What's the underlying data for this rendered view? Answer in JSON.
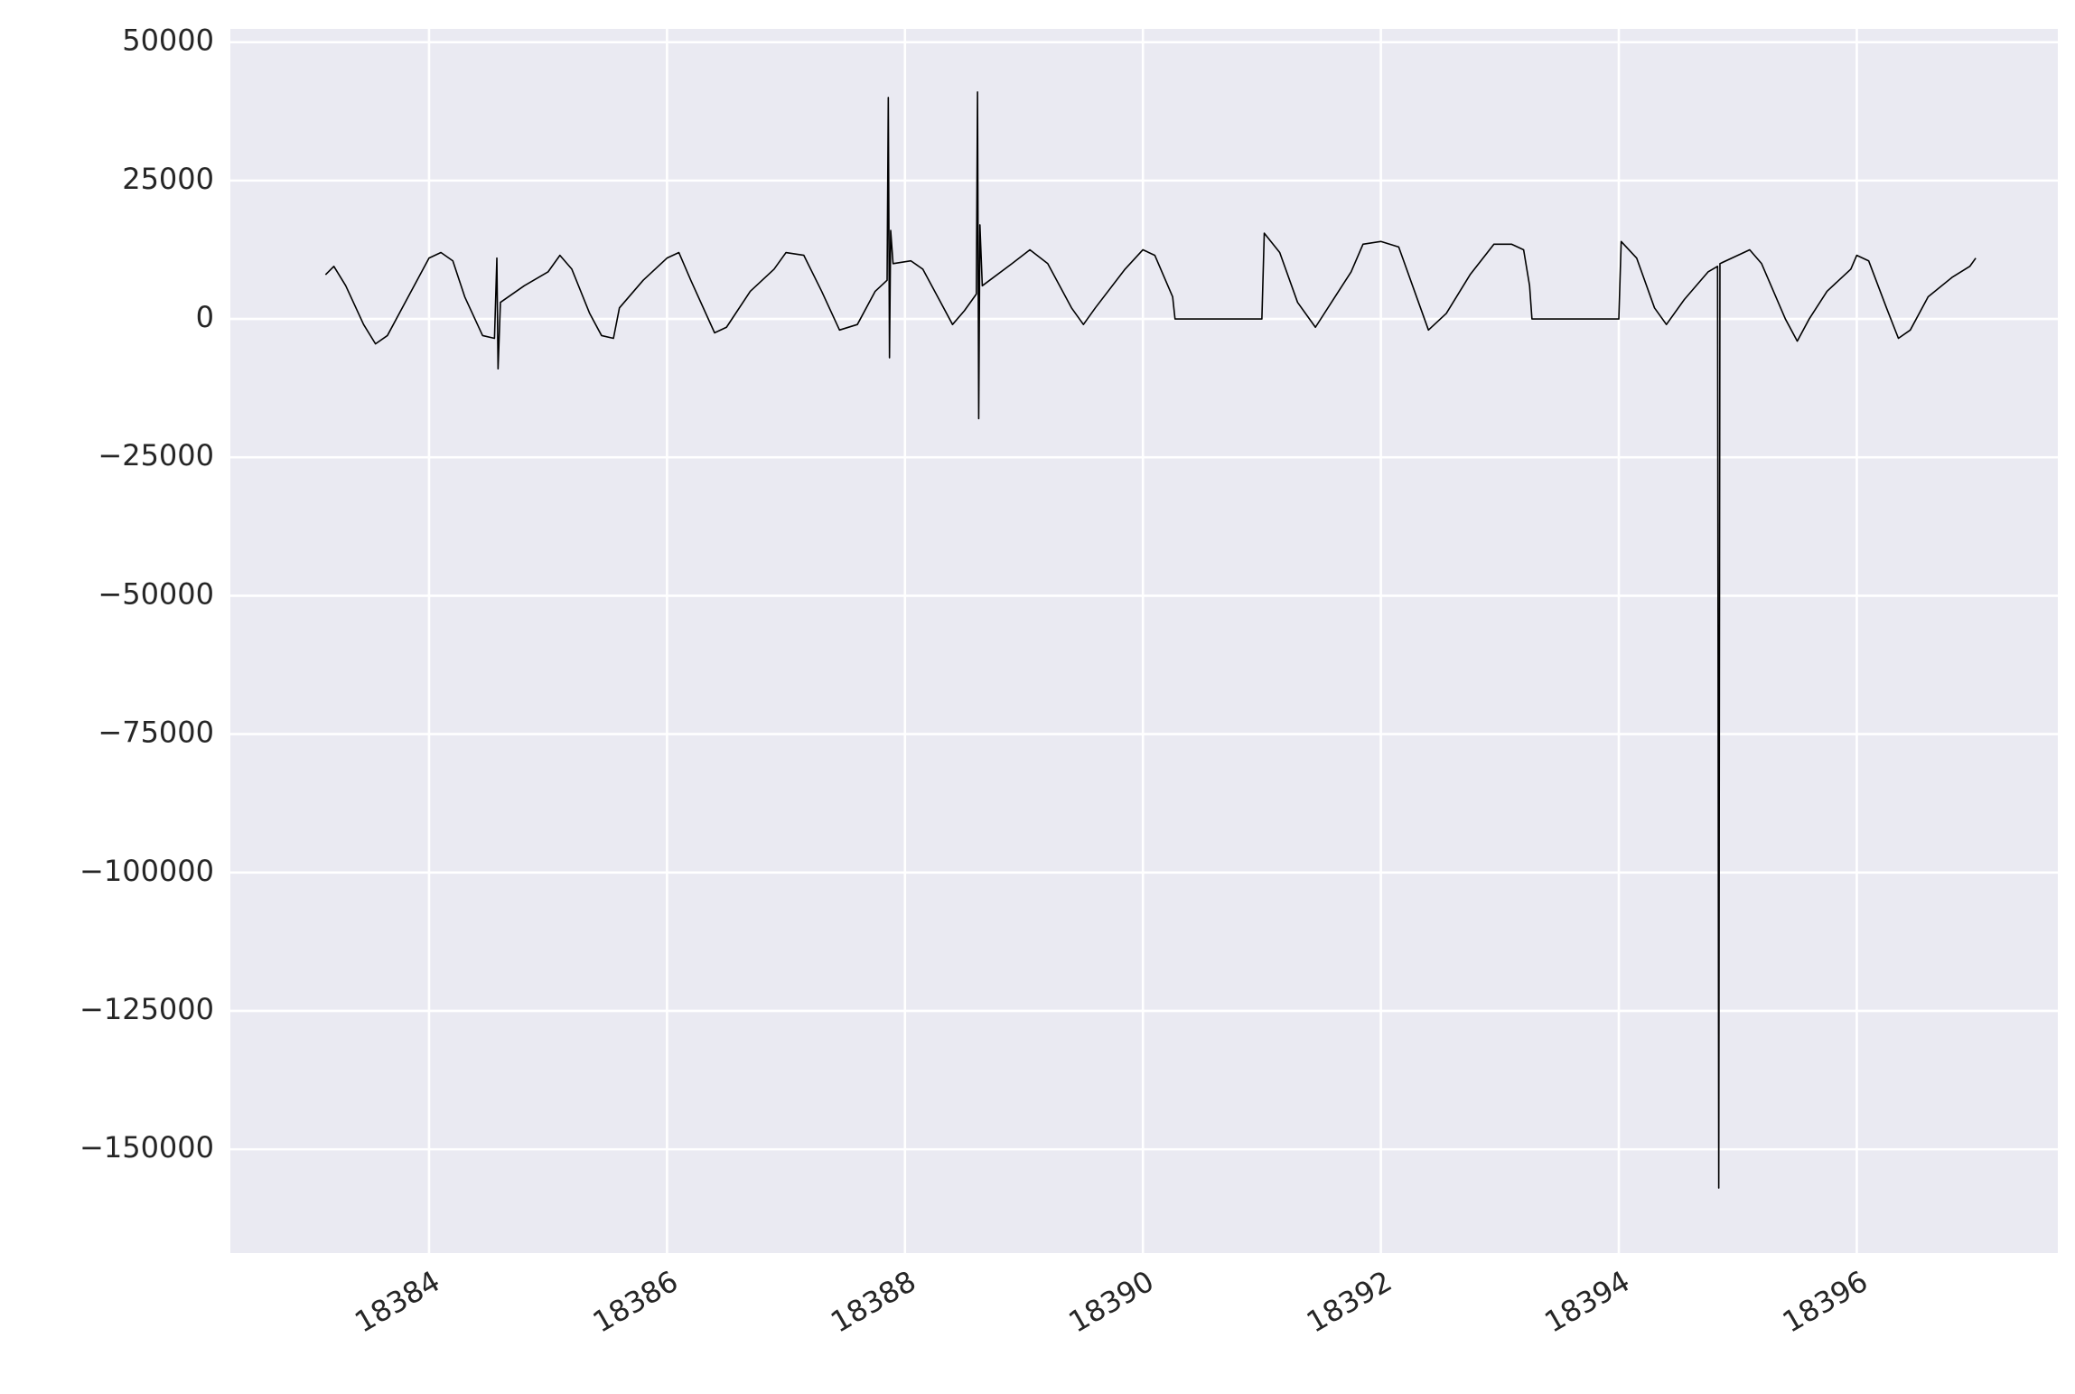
{
  "chart_data": {
    "type": "line",
    "x": [
      18383.13,
      18383.2,
      18383.3,
      18383.45,
      18383.55,
      18383.65,
      18383.8,
      18384.0,
      18384.1,
      18384.2,
      18384.3,
      18384.45,
      18384.55,
      18384.57,
      18384.58,
      18384.6,
      18384.8,
      18385.0,
      18385.1,
      18385.2,
      18385.35,
      18385.45,
      18385.55,
      18385.6,
      18385.8,
      18386.0,
      18386.1,
      18386.2,
      18386.4,
      18386.5,
      18386.7,
      18386.9,
      18387.0,
      18387.15,
      18387.3,
      18387.45,
      18387.6,
      18387.75,
      18387.85,
      18387.86,
      18387.87,
      18387.88,
      18387.9,
      18388.05,
      18388.15,
      18388.3,
      18388.4,
      18388.5,
      18388.6,
      18388.61,
      18388.62,
      18388.63,
      18388.65,
      18388.9,
      18389.05,
      18389.2,
      18389.4,
      18389.5,
      18389.6,
      18389.85,
      18390.0,
      18390.1,
      18390.25,
      18390.27,
      18391.0,
      18391.02,
      18391.15,
      18391.3,
      18391.45,
      18391.6,
      18391.75,
      18391.85,
      18392.0,
      18392.15,
      18392.3,
      18392.4,
      18392.55,
      18392.75,
      18392.95,
      18393.1,
      18393.2,
      18393.25,
      18393.27,
      18394.0,
      18394.02,
      18394.15,
      18394.3,
      18394.4,
      18394.55,
      18394.75,
      18394.83,
      18394.84,
      18394.85,
      18395.0,
      18395.1,
      18395.2,
      18395.4,
      18395.5,
      18395.6,
      18395.75,
      18395.95,
      18396.0,
      18396.1,
      18396.25,
      18396.35,
      18396.45,
      18396.6,
      18396.8,
      18396.95,
      18397.0
    ],
    "values": [
      8000,
      9500,
      6000,
      -1000,
      -4500,
      -3000,
      3000,
      11000,
      12000,
      10500,
      4000,
      -3000,
      -3500,
      11000,
      -9000,
      3000,
      6000,
      8500,
      11500,
      9000,
      1000,
      -3000,
      -3500,
      2000,
      7000,
      11000,
      12000,
      7000,
      -2500,
      -1500,
      5000,
      9000,
      12000,
      11500,
      5000,
      -2000,
      -1000,
      5000,
      7000,
      40000,
      -7000,
      16000,
      10000,
      10500,
      9000,
      3000,
      -1000,
      1500,
      4500,
      41000,
      -18000,
      17000,
      6000,
      10000,
      12500,
      10000,
      2000,
      -1000,
      2000,
      9000,
      12500,
      11500,
      4000,
      0,
      0,
      15500,
      12000,
      3000,
      -1500,
      3500,
      8500,
      13500,
      14000,
      13000,
      4000,
      -2000,
      1000,
      8000,
      13500,
      13500,
      12500,
      6000,
      0,
      0,
      14000,
      11000,
      2000,
      -1000,
      3500,
      8500,
      9500,
      -157000,
      10000,
      11500,
      12500,
      10000,
      0,
      -4000,
      0,
      5000,
      9000,
      11500,
      10500,
      2000,
      -3500,
      -2000,
      4000,
      7500,
      9500,
      11000
    ],
    "color": "#000000",
    "xlim": [
      18382.33,
      18397.69
    ],
    "xticks": [
      18384,
      18386,
      18388,
      18390,
      18392,
      18394,
      18396
    ],
    "ylim": [
      -168750,
      52400
    ],
    "yticks": [
      {
        "value": -150000,
        "label": "−150000"
      },
      {
        "value": -125000,
        "label": "−125000"
      },
      {
        "value": -100000,
        "label": "−100000"
      },
      {
        "value": -75000,
        "label": "−75000"
      },
      {
        "value": -50000,
        "label": "−50000"
      },
      {
        "value": -25000,
        "label": "−25000"
      },
      0,
      25000,
      50000
    ],
    "grid": true
  }
}
